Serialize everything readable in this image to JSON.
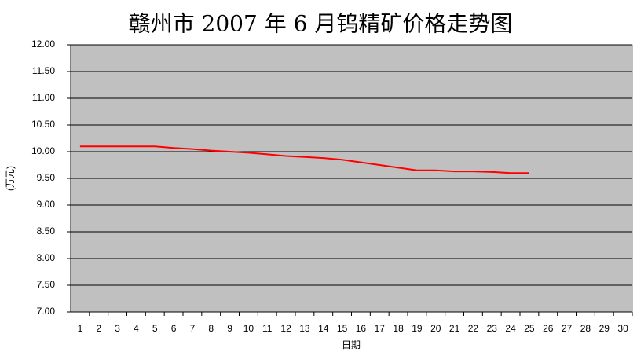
{
  "chart_data": {
    "type": "line",
    "title": "赣州市 2007 年 6 月钨精矿价格走势图",
    "y_label": "(万元)",
    "x_label": "日期",
    "categories": [
      "1",
      "2",
      "3",
      "4",
      "5",
      "6",
      "7",
      "8",
      "9",
      "10",
      "11",
      "12",
      "13",
      "14",
      "15",
      "16",
      "17",
      "18",
      "19",
      "20",
      "21",
      "22",
      "23",
      "24",
      "25",
      "26",
      "27",
      "28",
      "29",
      "30"
    ],
    "values": [
      10.1,
      10.1,
      10.1,
      10.1,
      10.1,
      10.07,
      10.05,
      10.02,
      10.0,
      9.98,
      9.95,
      9.92,
      9.9,
      9.88,
      9.85,
      9.8,
      9.75,
      9.7,
      9.65,
      9.65,
      9.63,
      9.63,
      9.62,
      9.6,
      9.6,
      null,
      null,
      null,
      null,
      null
    ],
    "color": "#ff0000",
    "ylim": [
      7,
      12
    ],
    "yticks": [
      {
        "value": 7,
        "label": "7.00"
      },
      {
        "value": 7.5,
        "label": "7.50"
      },
      {
        "value": 8,
        "label": "8.00"
      },
      {
        "value": 8.5,
        "label": "8.50"
      },
      {
        "value": 9,
        "label": "9.00"
      },
      {
        "value": 9.5,
        "label": "9.50"
      },
      {
        "value": 10,
        "label": "10.00"
      },
      {
        "value": 10.5,
        "label": "10.50"
      },
      {
        "value": 11,
        "label": "11.00"
      },
      {
        "value": 11.5,
        "label": "11.50"
      },
      {
        "value": 12,
        "label": "12.00"
      }
    ],
    "grid": true,
    "plot_background": "#c0c0c0"
  }
}
